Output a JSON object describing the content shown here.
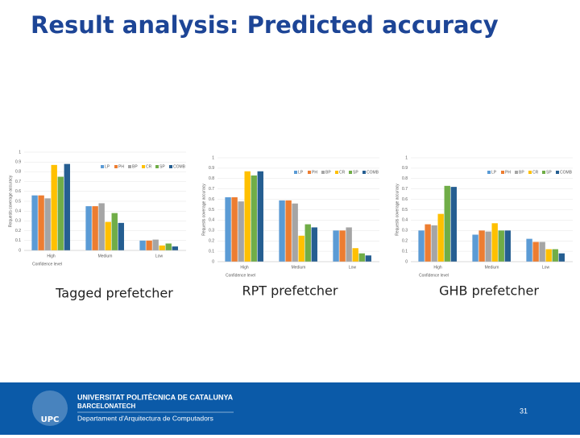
{
  "slide": {
    "title": "Result analysis: Predicted accuracy",
    "captions": [
      "Tagged prefetcher",
      "RPT prefetcher",
      "GHB prefetcher"
    ],
    "footer": {
      "logo": "UPC",
      "university": "UNIVERSITAT POLITÈCNICA DE CATALUNYA",
      "subtitle": "BARCELONATECH",
      "department": "Departament d'Arquitectura de Computadors",
      "page": "31"
    }
  },
  "chart_data": [
    {
      "type": "bar",
      "y_label": "Requests coverage accuracy",
      "x_label": "Confidence level",
      "categories": [
        "High",
        "Medium",
        "Low"
      ],
      "series": [
        {
          "name": "LP",
          "color": "#5b9bd5",
          "values": [
            0.56,
            0.45,
            0.1
          ]
        },
        {
          "name": "PH",
          "color": "#ed7d31",
          "values": [
            0.56,
            0.45,
            0.1
          ]
        },
        {
          "name": "BP",
          "color": "#a5a5a5",
          "values": [
            0.53,
            0.48,
            0.11
          ]
        },
        {
          "name": "CR",
          "color": "#ffc000",
          "values": [
            0.87,
            0.29,
            0.05
          ]
        },
        {
          "name": "SP",
          "color": "#70ad47",
          "values": [
            0.75,
            0.38,
            0.07
          ]
        },
        {
          "name": "COMB",
          "color": "#255e91",
          "values": [
            0.88,
            0.28,
            0.04
          ]
        }
      ],
      "ylim": [
        0,
        1
      ],
      "yticks": [
        0,
        0.1,
        0.2,
        0.3,
        0.4,
        0.5,
        0.6,
        0.7,
        0.8,
        0.9,
        1
      ],
      "grid": true,
      "legend": "top-right"
    },
    {
      "type": "bar",
      "y_label": "Requests coverage accuracy",
      "x_label": "Confidence level",
      "categories": [
        "High",
        "Medium",
        "Low"
      ],
      "series": [
        {
          "name": "LP",
          "color": "#5b9bd5",
          "values": [
            0.62,
            0.59,
            0.3
          ]
        },
        {
          "name": "PH",
          "color": "#ed7d31",
          "values": [
            0.62,
            0.59,
            0.3
          ]
        },
        {
          "name": "BP",
          "color": "#a5a5a5",
          "values": [
            0.58,
            0.56,
            0.33
          ]
        },
        {
          "name": "CR",
          "color": "#ffc000",
          "values": [
            0.87,
            0.25,
            0.13
          ]
        },
        {
          "name": "SP",
          "color": "#70ad47",
          "values": [
            0.83,
            0.36,
            0.08
          ]
        },
        {
          "name": "COMB",
          "color": "#255e91",
          "values": [
            0.87,
            0.33,
            0.06
          ]
        }
      ],
      "ylim": [
        0,
        1
      ],
      "yticks": [
        0,
        0.1,
        0.2,
        0.3,
        0.4,
        0.5,
        0.6,
        0.7,
        0.8,
        0.9,
        1
      ],
      "grid": true,
      "legend": "top-right"
    },
    {
      "type": "bar",
      "y_label": "Requests coverage accuracy",
      "x_label": "Confidence level",
      "categories": [
        "High",
        "Medium",
        "Low"
      ],
      "series": [
        {
          "name": "LP",
          "color": "#5b9bd5",
          "values": [
            0.3,
            0.26,
            0.22
          ]
        },
        {
          "name": "PH",
          "color": "#ed7d31",
          "values": [
            0.36,
            0.3,
            0.19
          ]
        },
        {
          "name": "BP",
          "color": "#a5a5a5",
          "values": [
            0.35,
            0.29,
            0.19
          ]
        },
        {
          "name": "CR",
          "color": "#ffc000",
          "values": [
            0.46,
            0.37,
            0.12
          ]
        },
        {
          "name": "SP",
          "color": "#70ad47",
          "values": [
            0.73,
            0.3,
            0.12
          ]
        },
        {
          "name": "COMB",
          "color": "#255e91",
          "values": [
            0.72,
            0.3,
            0.08
          ]
        }
      ],
      "ylim": [
        0,
        1
      ],
      "yticks": [
        0,
        0.1,
        0.2,
        0.3,
        0.4,
        0.5,
        0.6,
        0.7,
        0.8,
        0.9,
        1
      ],
      "grid": true,
      "legend": "top-right"
    }
  ]
}
